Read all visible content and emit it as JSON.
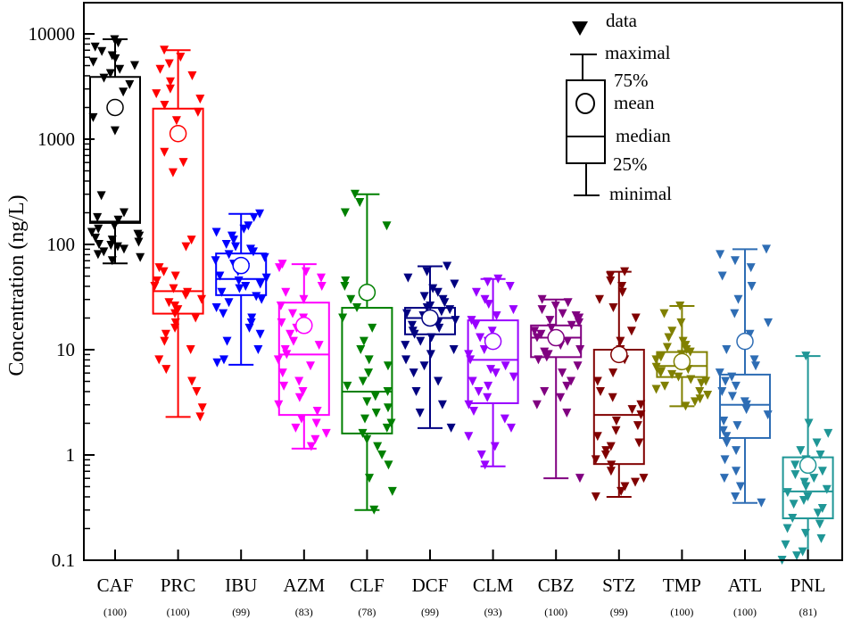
{
  "chart_data": {
    "type": "box",
    "ylabel": "Concentration  (ng/L)",
    "yscale": "log",
    "ylim": [
      0.1,
      10000
    ],
    "yticks": [
      0.1,
      1,
      10,
      100,
      1000,
      10000
    ],
    "ytick_labels": [
      "0.1",
      "1",
      "10",
      "100",
      "1000",
      "10000"
    ],
    "grid": false,
    "legend": {
      "placement": "top-right",
      "items": [
        "data",
        "maximal",
        "75%",
        "mean",
        "median",
        "25%",
        "minimal"
      ]
    },
    "categories": [
      "CAF",
      "PRC",
      "IBU",
      "AZM",
      "CLF",
      "DCF",
      "CLM",
      "CBZ",
      "STZ",
      "TMP",
      "ATL",
      "PNL"
    ],
    "counts": [
      "(100)",
      "(100)",
      "(99)",
      "(83)",
      "(78)",
      "(99)",
      "(93)",
      "(100)",
      "(99)",
      "(100)",
      "(100)",
      "(81)"
    ],
    "series": [
      {
        "category": "CAF",
        "color": "#000000",
        "min": 66,
        "q1": 160,
        "median": 165,
        "mean": 2000,
        "q3": 3900,
        "max": 8900,
        "points": [
          8800,
          8200,
          7500,
          6800,
          6200,
          5800,
          5400,
          5000,
          4600,
          4200,
          3800,
          3300,
          2800,
          1600,
          1200,
          290,
          200,
          180,
          170,
          150,
          140,
          130,
          125,
          120,
          115,
          110,
          105,
          100,
          98,
          95,
          90,
          85,
          80,
          75,
          70
        ]
      },
      {
        "category": "PRC",
        "color": "#ff0000",
        "min": 2.3,
        "q1": 22,
        "median": 36,
        "mean": 1130,
        "q3": 1950,
        "max": 7000,
        "points": [
          7000,
          6000,
          5200,
          4600,
          4000,
          3500,
          3000,
          2700,
          2400,
          2100,
          1800,
          1500,
          750,
          600,
          480,
          110,
          95,
          60,
          55,
          50,
          45,
          40,
          38,
          35,
          33,
          30,
          28,
          26,
          24,
          22,
          20,
          18,
          16,
          14,
          12,
          10,
          8,
          6.5,
          5,
          4,
          2.8,
          2.3
        ]
      },
      {
        "category": "IBU",
        "color": "#0000ff",
        "min": 7.2,
        "q1": 33,
        "median": 47,
        "mean": 63,
        "q3": 82,
        "max": 195,
        "points": [
          195,
          180,
          150,
          140,
          130,
          120,
          110,
          100,
          95,
          90,
          85,
          80,
          75,
          70,
          65,
          60,
          55,
          50,
          48,
          45,
          42,
          40,
          38,
          35,
          32,
          30,
          28,
          25,
          22,
          20,
          18,
          16,
          14,
          12,
          10,
          8,
          7.5
        ]
      },
      {
        "category": "AZM",
        "color": "#ff00ff",
        "min": 1.15,
        "q1": 2.4,
        "median": 9,
        "mean": 17,
        "q3": 28,
        "max": 65,
        "points": [
          65,
          60,
          55,
          48,
          40,
          35,
          30,
          26,
          22,
          20,
          18,
          16,
          14,
          12,
          11,
          10,
          9,
          8,
          7,
          6,
          5,
          4.5,
          4,
          3.5,
          3,
          2.6,
          2.2,
          2,
          1.8,
          1.6,
          1.4,
          1.2
        ]
      },
      {
        "category": "CLF",
        "color": "#008000",
        "min": 0.3,
        "q1": 1.6,
        "median": 4,
        "mean": 35,
        "q3": 25,
        "max": 300,
        "points": [
          300,
          250,
          200,
          150,
          45,
          40,
          30,
          25,
          20,
          16,
          12,
          10,
          8,
          7,
          6,
          5,
          4.5,
          4,
          3.6,
          3.2,
          2.8,
          2.5,
          2.2,
          2,
          1.8,
          1.6,
          1.4,
          1.2,
          1,
          0.8,
          0.6,
          0.45,
          0.3
        ]
      },
      {
        "category": "DCF",
        "color": "#000080",
        "min": 1.8,
        "q1": 14,
        "median": 20,
        "mean": 20,
        "q3": 25,
        "max": 62,
        "points": [
          62,
          55,
          48,
          42,
          38,
          35,
          32,
          30,
          28,
          26,
          25,
          24,
          23,
          22,
          21,
          20,
          19,
          18,
          17,
          16,
          15,
          14,
          13,
          12,
          11,
          10,
          9,
          8,
          7,
          6,
          5,
          4,
          3,
          2.5,
          1.8
        ]
      },
      {
        "category": "CLM",
        "color": "#9900ff",
        "min": 0.78,
        "q1": 3.1,
        "median": 8,
        "mean": 12,
        "q3": 19,
        "max": 47,
        "points": [
          47,
          44,
          40,
          35,
          30,
          27,
          24,
          21,
          19,
          17,
          15,
          13,
          12,
          11,
          10,
          9,
          8,
          7,
          6.5,
          6,
          5.5,
          5,
          4.5,
          4,
          3.5,
          3,
          2.6,
          2.2,
          1.8,
          1.5,
          1.2,
          1,
          0.8
        ]
      },
      {
        "category": "CBZ",
        "color": "#800080",
        "min": 0.6,
        "q1": 8.5,
        "median": 13,
        "mean": 13,
        "q3": 17,
        "max": 30,
        "points": [
          30,
          28,
          26,
          24,
          22,
          21,
          20,
          19,
          18,
          17,
          16,
          15,
          14,
          13,
          12,
          11,
          10,
          9.5,
          9,
          8.5,
          8,
          7,
          6,
          5,
          4.5,
          4,
          3.5,
          3,
          2.5,
          0.6
        ]
      },
      {
        "category": "STZ",
        "color": "#800000",
        "min": 0.4,
        "q1": 0.82,
        "median": 2.4,
        "mean": 9,
        "q3": 10,
        "max": 55,
        "points": [
          55,
          50,
          45,
          40,
          35,
          30,
          25,
          20,
          15,
          12,
          10,
          8,
          6,
          5,
          4,
          3.5,
          3,
          2.7,
          2.4,
          2.1,
          1.9,
          1.7,
          1.5,
          1.3,
          1.2,
          1.1,
          1,
          0.9,
          0.8,
          0.7,
          0.6,
          0.55,
          0.5,
          0.45,
          0.4
        ]
      },
      {
        "category": "TMP",
        "color": "#808000",
        "min": 2.9,
        "q1": 5.5,
        "median": 7,
        "mean": 7.7,
        "q3": 9.5,
        "max": 26,
        "points": [
          26,
          22,
          18,
          15,
          13,
          12,
          11,
          10.5,
          10,
          9.5,
          9,
          8.5,
          8,
          7.5,
          7,
          6.8,
          6.5,
          6.2,
          6,
          5.8,
          5.5,
          5.2,
          5,
          4.8,
          4.5,
          4.2,
          4,
          3.7,
          3.4,
          3.2,
          2.9
        ]
      },
      {
        "category": "ATL",
        "color": "#2e6db4",
        "min": 0.35,
        "q1": 1.45,
        "median": 3,
        "mean": 12,
        "q3": 5.8,
        "max": 90,
        "points": [
          90,
          80,
          70,
          60,
          50,
          40,
          30,
          22,
          18,
          14,
          10,
          8,
          7,
          6,
          5.5,
          5,
          4.5,
          4,
          3.6,
          3.2,
          3,
          2.7,
          2.4,
          2.1,
          1.9,
          1.7,
          1.5,
          1.3,
          1.1,
          0.9,
          0.7,
          0.6,
          0.5,
          0.4,
          0.35
        ]
      },
      {
        "category": "PNL",
        "color": "#1f9696",
        "min": 0.1,
        "q1": 0.25,
        "median": 0.45,
        "mean": 0.8,
        "q3": 0.95,
        "max": 8.7,
        "points": [
          8.7,
          2,
          1.6,
          1.3,
          1.1,
          1,
          0.9,
          0.8,
          0.7,
          0.65,
          0.6,
          0.55,
          0.5,
          0.47,
          0.44,
          0.4,
          0.37,
          0.34,
          0.31,
          0.28,
          0.25,
          0.22,
          0.2,
          0.18,
          0.16,
          0.14,
          0.12,
          0.11,
          0.1
        ]
      }
    ]
  }
}
